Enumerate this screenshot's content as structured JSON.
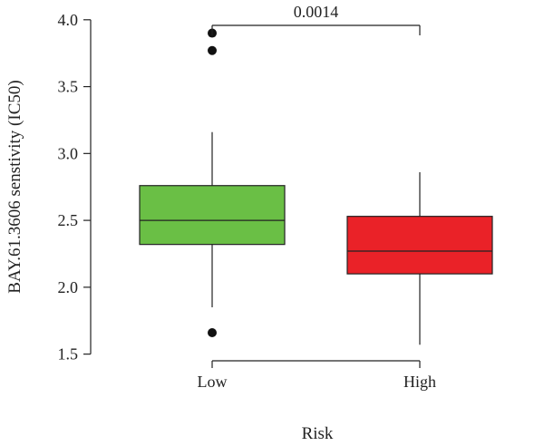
{
  "chart_data": {
    "type": "box",
    "xlabel": "Risk",
    "ylabel": "BAY.61.3606 senstivity (IC50)",
    "categories": [
      "Low",
      "High"
    ],
    "ylim": [
      1.45,
      4.08
    ],
    "yticks": [
      1.5,
      2.0,
      2.5,
      3.0,
      3.5,
      4.0
    ],
    "ytick_labels": [
      "1.5",
      "2.0",
      "2.5",
      "3.0",
      "3.5",
      "4.0"
    ],
    "grid": false,
    "boxes": [
      {
        "category": "Low",
        "color": "#6abf45",
        "q1": 2.32,
        "median": 2.5,
        "q3": 2.76,
        "whisker_low": 1.85,
        "whisker_high": 3.16,
        "outliers": [
          3.9,
          3.77,
          1.66
        ]
      },
      {
        "category": "High",
        "color": "#ea2228",
        "q1": 2.1,
        "median": 2.27,
        "q3": 2.53,
        "whisker_low": 1.57,
        "whisker_high": 2.86,
        "outliers": []
      }
    ],
    "annotation": {
      "text": "0.0014",
      "between": [
        "Low",
        "High"
      ]
    }
  }
}
